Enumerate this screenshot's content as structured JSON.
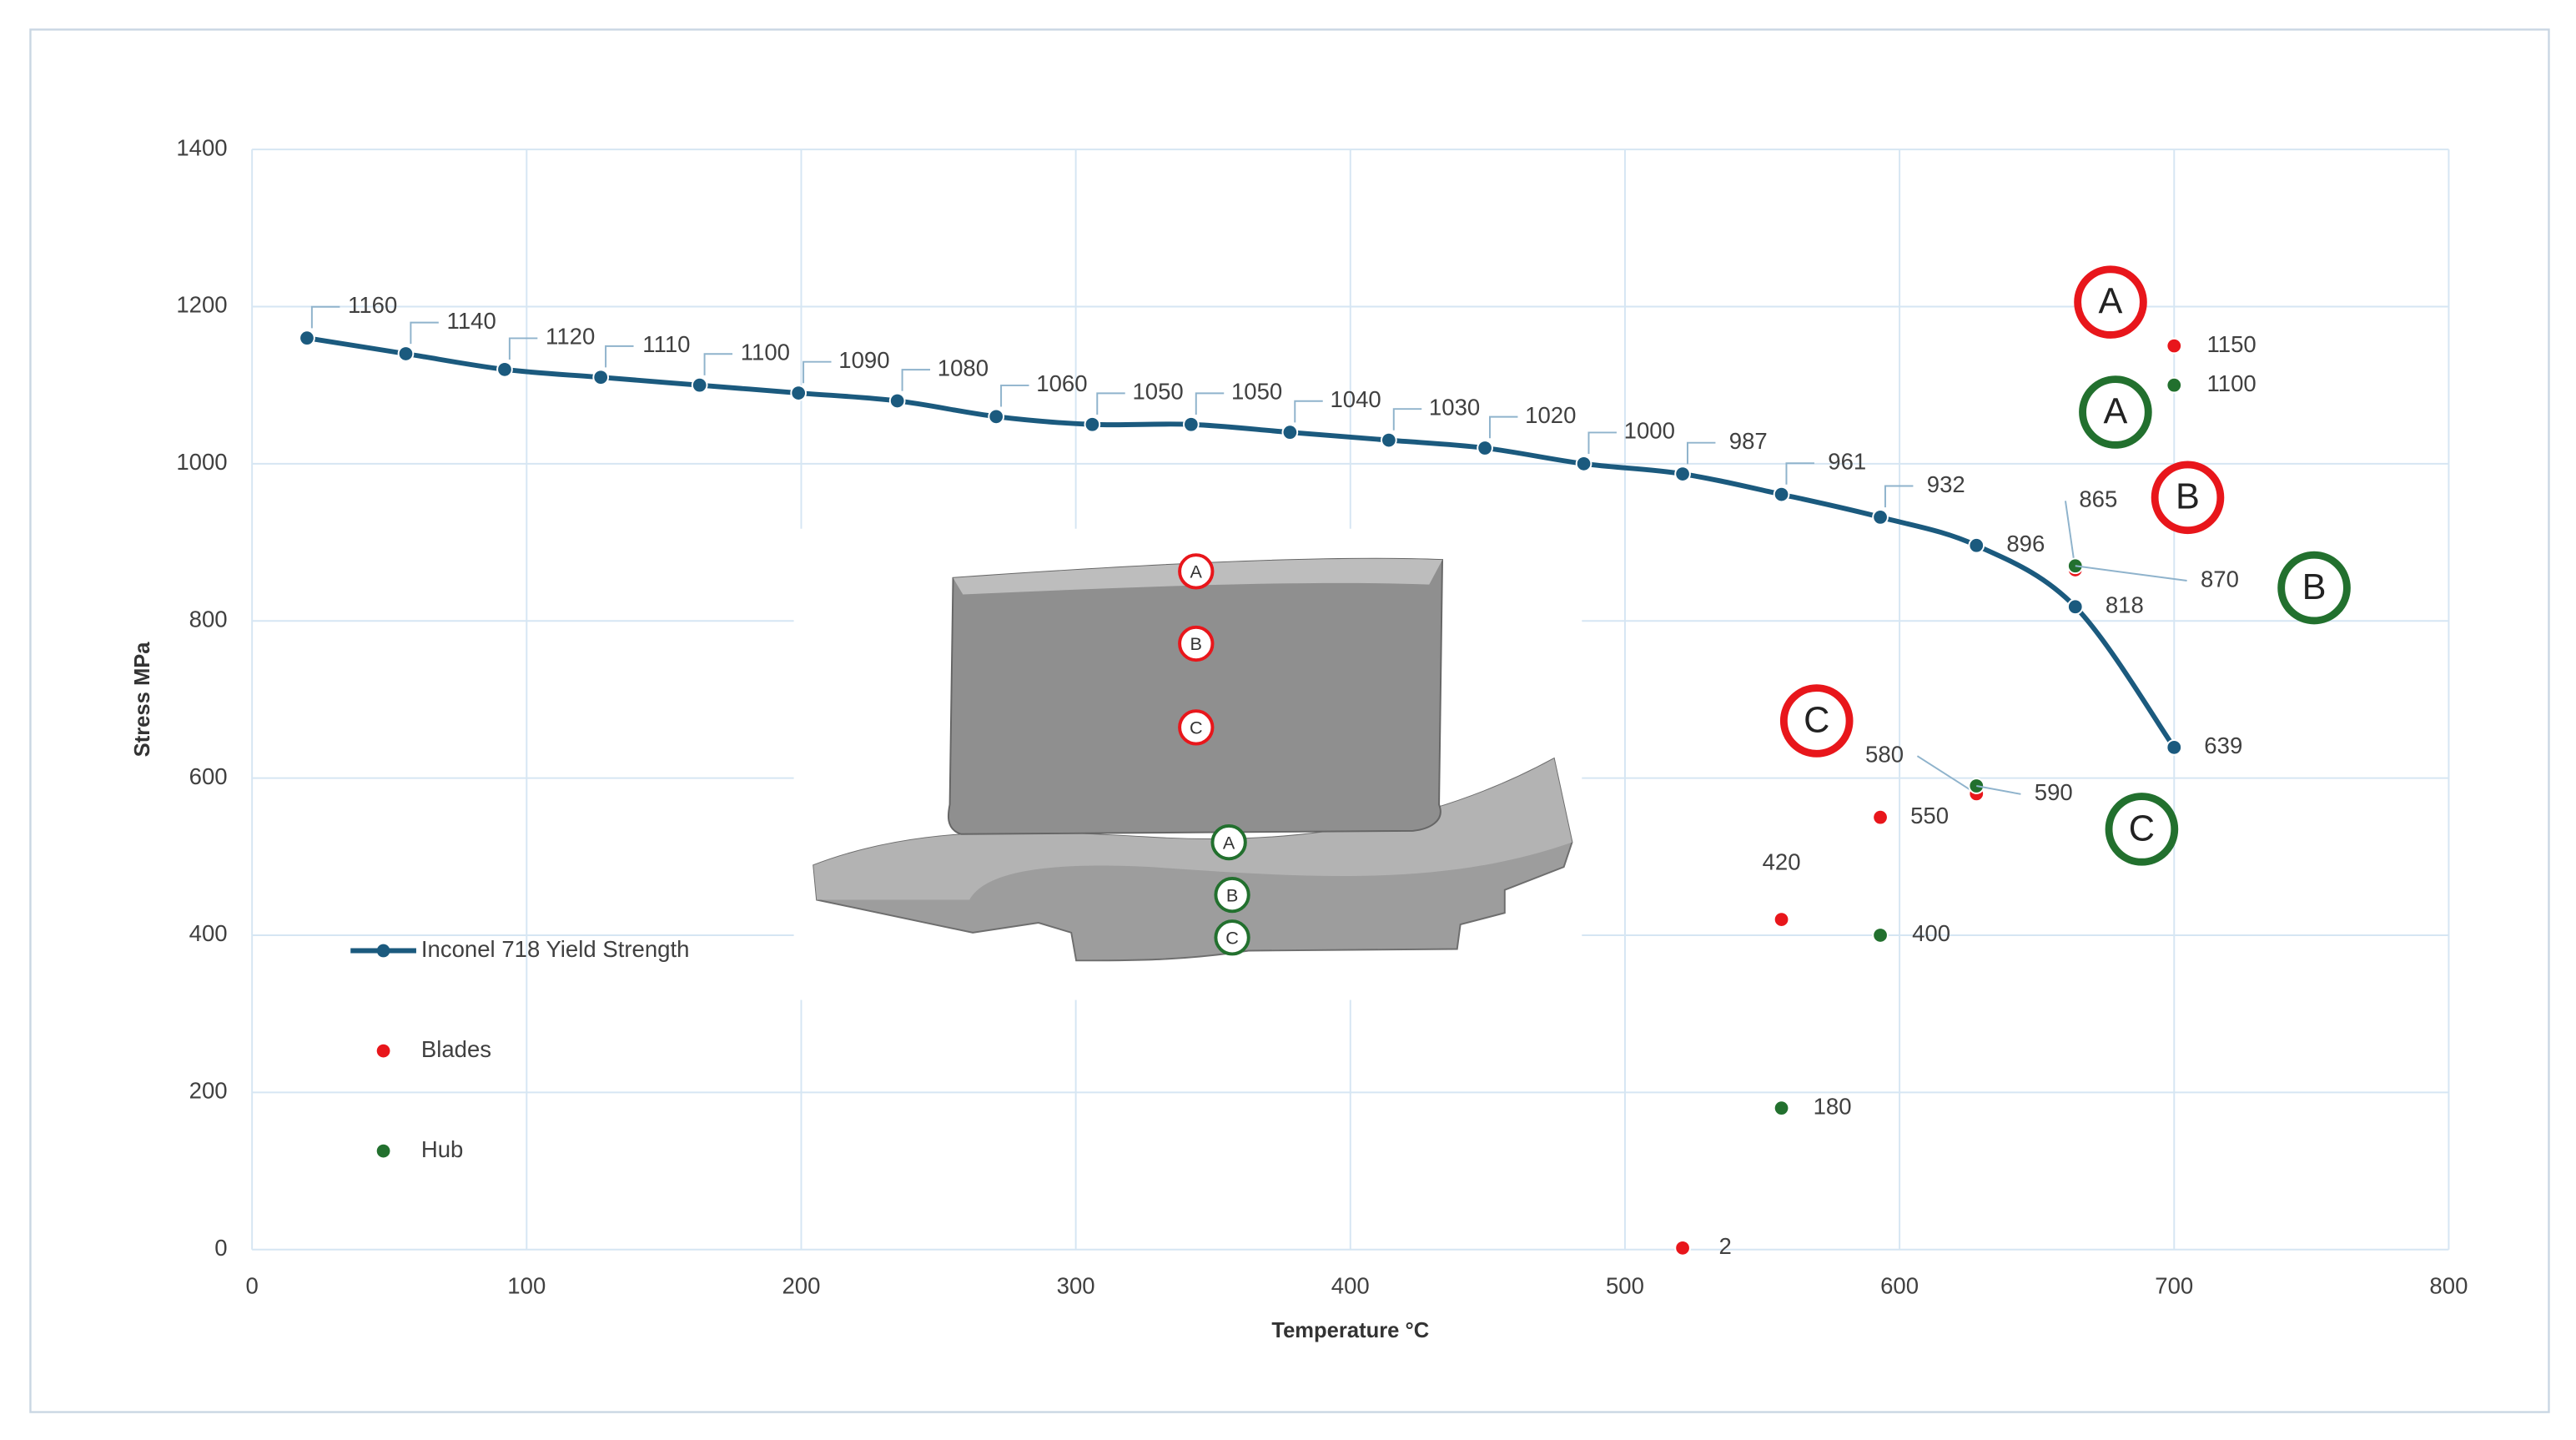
{
  "chart_data": {
    "type": "line",
    "x_label": "Temperature °C",
    "y_label": "Stress MPa",
    "xlim": [
      0,
      800
    ],
    "ylim": [
      0,
      1400
    ],
    "xticks": [
      0,
      100,
      200,
      300,
      400,
      500,
      600,
      700,
      800
    ],
    "yticks": [
      0,
      200,
      400,
      600,
      800,
      1000,
      1200,
      1400
    ],
    "grid": true,
    "legend": "left",
    "series": [
      {
        "name": "Inconel 718 Yield Strength",
        "type": "line",
        "color": "#1b5a7e",
        "x": [
          20,
          56,
          92,
          127,
          163,
          199,
          235,
          271,
          306,
          342,
          378,
          414,
          449,
          485,
          521,
          557,
          593,
          628,
          664,
          700
        ],
        "values": [
          1160,
          1140,
          1120,
          1110,
          1100,
          1090,
          1080,
          1060,
          1050,
          1050,
          1040,
          1030,
          1020,
          1000,
          987,
          961,
          932,
          896,
          818,
          639
        ]
      },
      {
        "name": "Blades",
        "type": "scatter",
        "color": "#e8161b",
        "x": [
          521,
          557,
          593,
          628,
          664,
          700
        ],
        "values": [
          2,
          420,
          550,
          580,
          865,
          1150
        ]
      },
      {
        "name": "Hub",
        "type": "scatter",
        "color": "#22702e",
        "x": [
          557,
          593,
          628,
          664,
          700
        ],
        "values": [
          180,
          400,
          590,
          870,
          1100
        ]
      }
    ],
    "annotations": [
      {
        "text": "A",
        "color": "#e8161b"
      },
      {
        "text": "A",
        "color": "#22702e"
      },
      {
        "text": "B",
        "color": "#e8161b"
      },
      {
        "text": "B",
        "color": "#22702e"
      },
      {
        "text": "C",
        "color": "#e8161b"
      },
      {
        "text": "C",
        "color": "#22702e"
      }
    ],
    "inset_labels": [
      {
        "text": "A",
        "color": "#e8161b"
      },
      {
        "text": "B",
        "color": "#e8161b"
      },
      {
        "text": "C",
        "color": "#e8161b"
      },
      {
        "text": "A",
        "color": "#22702e"
      },
      {
        "text": "B",
        "color": "#22702e"
      },
      {
        "text": "C",
        "color": "#22702e"
      }
    ]
  }
}
